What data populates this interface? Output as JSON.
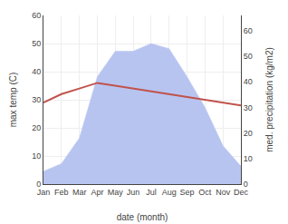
{
  "chart_data": {
    "type": "line",
    "categories": [
      "Jan",
      "Feb",
      "Mar",
      "Apr",
      "May",
      "Jun",
      "Jul",
      "Aug",
      "Sep",
      "Oct",
      "Nov",
      "Dec"
    ],
    "series": [
      {
        "type": "line",
        "color": "#c0534c",
        "values": [
          29,
          32,
          34,
          36,
          35,
          34,
          33,
          32,
          31,
          30,
          29,
          28
        ]
      },
      {
        "type": "area",
        "color": "#b8c4f0",
        "axis": "y2",
        "values": [
          5,
          8,
          18,
          42,
          52,
          52,
          55,
          53,
          42,
          30,
          15,
          7
        ]
      }
    ],
    "xlabel": "date (month)",
    "ylabel": "max temp (C)",
    "y2label": "med. precipitation (kg/m2)",
    "ylim": [
      0,
      60
    ],
    "yticks": [
      0,
      10,
      20,
      30,
      40,
      50,
      60
    ],
    "y2lim": [
      0,
      66
    ],
    "y2ticks": [
      0,
      10,
      20,
      30,
      40,
      50,
      60
    ],
    "grid": true
  }
}
